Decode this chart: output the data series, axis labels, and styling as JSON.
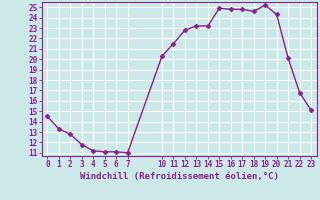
{
  "x": [
    0,
    1,
    2,
    3,
    4,
    5,
    6,
    7,
    10,
    11,
    12,
    13,
    14,
    15,
    16,
    17,
    18,
    19,
    20,
    21,
    22,
    23
  ],
  "y": [
    14.5,
    13.3,
    12.8,
    11.8,
    11.2,
    11.1,
    11.1,
    11.0,
    20.3,
    21.5,
    22.8,
    23.2,
    23.2,
    24.9,
    24.8,
    24.8,
    24.6,
    25.2,
    24.3,
    20.1,
    16.8,
    15.1
  ],
  "line_color": "#882288",
  "marker": "D",
  "markersize": 2.5,
  "linewidth": 1.0,
  "xlabel": "Windchill (Refroidissement éolien,°C)",
  "xlim": [
    -0.5,
    23.5
  ],
  "ylim": [
    10.7,
    25.5
  ],
  "yticks": [
    11,
    12,
    13,
    14,
    15,
    16,
    17,
    18,
    19,
    20,
    21,
    22,
    23,
    24,
    25
  ],
  "xticks": [
    0,
    1,
    2,
    3,
    4,
    5,
    6,
    7,
    10,
    11,
    12,
    13,
    14,
    15,
    16,
    17,
    18,
    19,
    20,
    21,
    22,
    23
  ],
  "bg_color": "#cce8e8",
  "grid_color": "#ffffff",
  "line_label_color": "#882288",
  "tick_fontsize": 5.5,
  "xlabel_fontsize": 6.5
}
